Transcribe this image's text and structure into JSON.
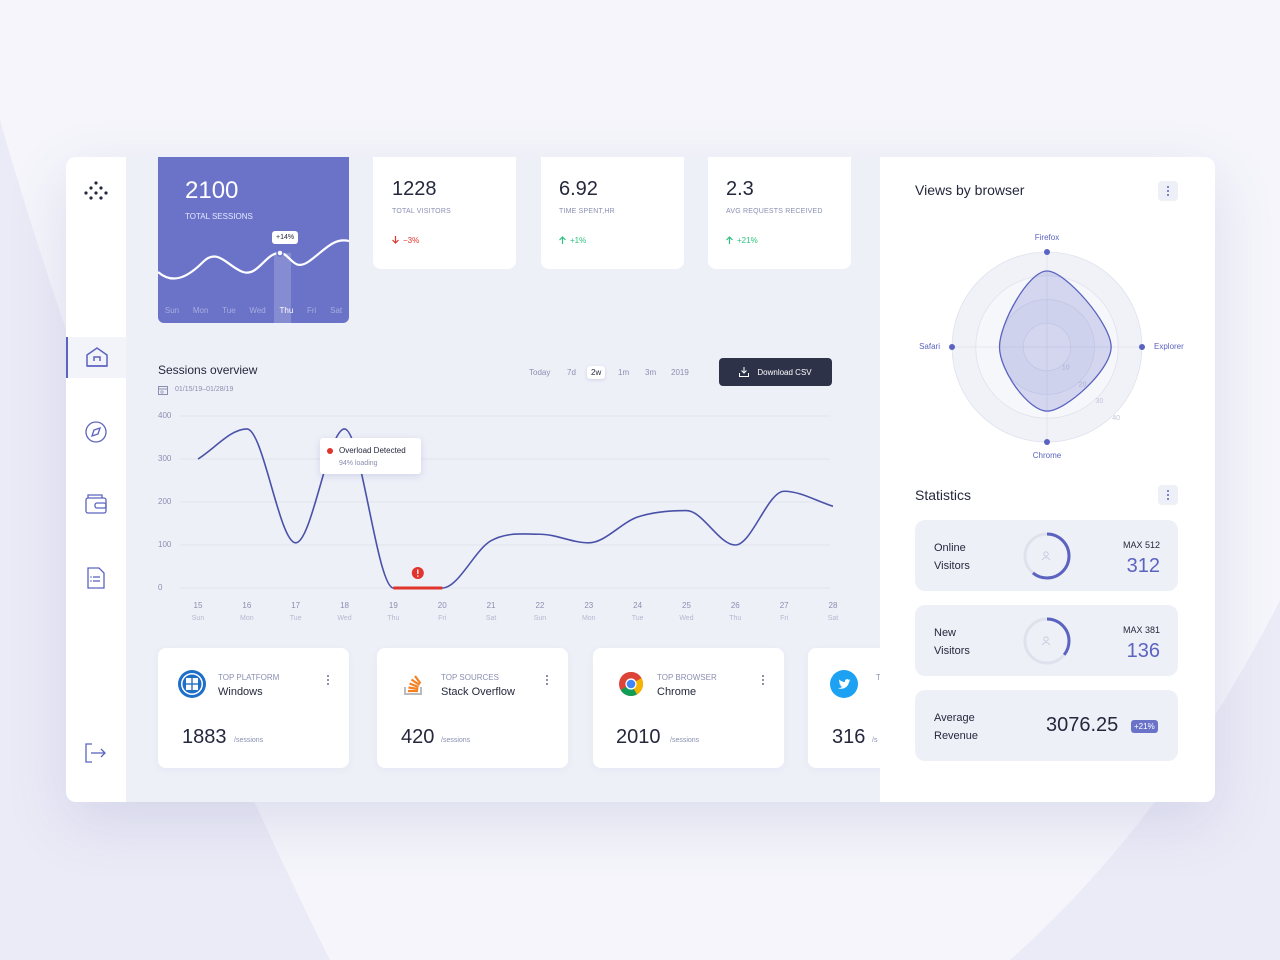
{
  "sessions_card": {
    "value": 2100,
    "label": "TOTAL SESSIONS",
    "badge": "+14%",
    "days": [
      "Sun",
      "Mon",
      "Tue",
      "Wed",
      "Thu",
      "Fri",
      "Sat"
    ]
  },
  "summary_cards": [
    {
      "value": 1228,
      "label": "TOTAL VISITORS",
      "change": "−3%",
      "trend": "down"
    },
    {
      "value": 6.92,
      "label": "TIME SPENT,HR",
      "change": "+1%",
      "trend": "up"
    },
    {
      "value": 2.3,
      "label": "AVG REQUESTS RECEIVED",
      "change": "+21%",
      "trend": "up"
    }
  ],
  "chart_data": [
    {
      "type": "line",
      "title": "Sessions overview",
      "subtitle": "01/15/19–01/28/19",
      "ranges": [
        "Today",
        "7d",
        "2w",
        "1m",
        "3m",
        "2019"
      ],
      "button": "Download CSV",
      "x": [
        15,
        16,
        17,
        18,
        19,
        20,
        21,
        22,
        23,
        24,
        25,
        26,
        27,
        28
      ],
      "x_sublabels": [
        "Sun",
        "Mon",
        "Tue",
        "Wed",
        "Thu",
        "Fri",
        "Sat",
        "Sun",
        "Mon",
        "Tue",
        "Wed",
        "Thu",
        "Fri",
        "Sat"
      ],
      "values": [
        300,
        370,
        105,
        370,
        0,
        0,
        110,
        125,
        105,
        165,
        180,
        100,
        225,
        190
      ],
      "color": "#4a52a8",
      "xlim": [
        15,
        28
      ],
      "xticks": [
        15,
        16,
        17,
        18,
        19,
        20,
        21,
        22,
        23,
        24,
        25,
        26,
        27,
        28
      ],
      "ylim": [
        0,
        400
      ],
      "yticks": [
        0,
        100,
        200,
        300,
        400
      ],
      "grid": true,
      "annotation": {
        "title": "Overload Detected",
        "text": "94% loading",
        "x_range": [
          19,
          20
        ]
      }
    },
    {
      "type": "radar",
      "title": "Views by browser",
      "categories": [
        "Firefox",
        "Explorer",
        "Chrome",
        "Safari"
      ],
      "values": [
        32,
        27,
        27,
        20
      ],
      "color": "#5b63c0",
      "rlim": [
        0,
        40
      ],
      "rticks": [
        10,
        20,
        30,
        40
      ]
    }
  ],
  "statistics": {
    "title": "Statistics",
    "items": [
      {
        "label": "Online Visitors",
        "value": 312,
        "max": {
          "value": 512,
          "label": "MAX 512"
        }
      },
      {
        "label": "New Visitors",
        "value": 136,
        "max": {
          "value": 381,
          "label": "MAX 381"
        }
      },
      {
        "label": "Average Revenue",
        "value": 3076.25,
        "badge": "+21%"
      }
    ]
  },
  "top_cards": [
    {
      "label": "TOP PLATFORM",
      "name": "Windows",
      "value": 1883,
      "unit": "/sessions"
    },
    {
      "label": "TOP SOURCES",
      "name": "Stack Overflow",
      "value": 420,
      "unit": "/sessions"
    },
    {
      "label": "TOP BROWSER",
      "name": "Chrome",
      "value": 2010,
      "unit": "/sessions"
    },
    {
      "label": "T",
      "value": 316,
      "unit": "/s"
    }
  ]
}
